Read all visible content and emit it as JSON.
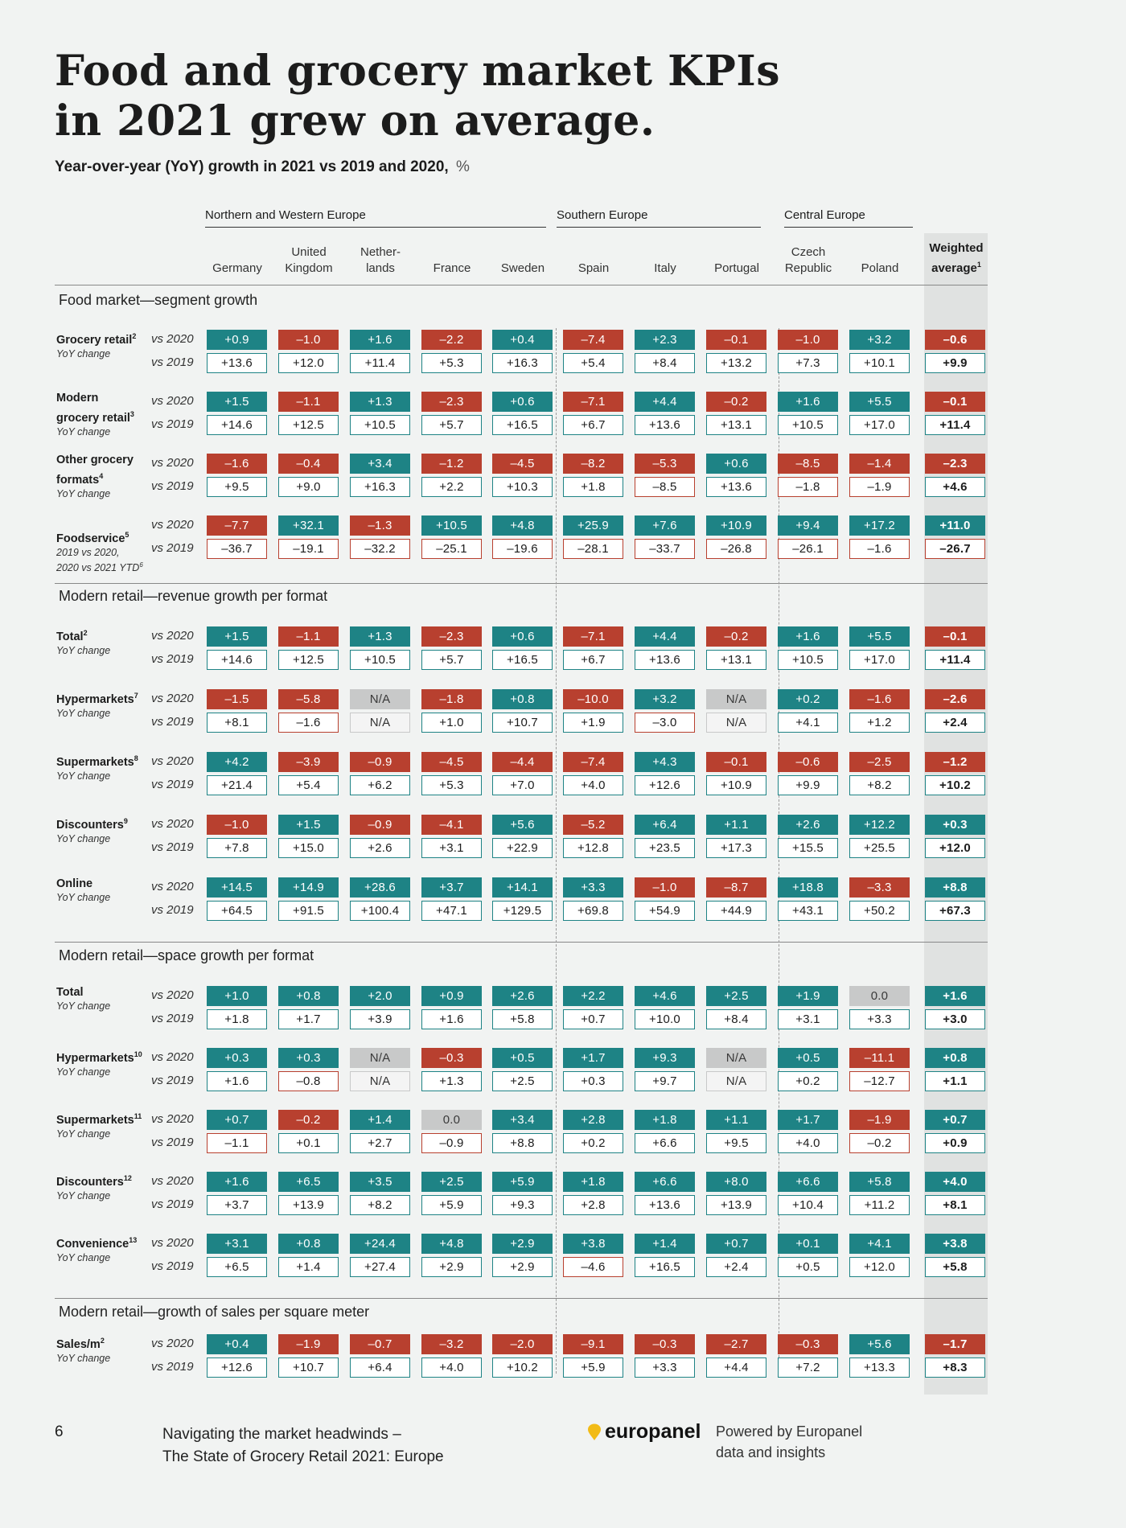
{
  "title_lines": [
    "Food and grocery market KPIs",
    "in 2021 grew on average."
  ],
  "subtitle": "Year-over-year (YoY) growth in 2021 vs 2019 and 2020,",
  "subtitle_unit": "%",
  "column_groups": [
    "Northern and Western Europe",
    "Southern Europe",
    "Central Europe"
  ],
  "columns": [
    [
      "Germany"
    ],
    [
      "United",
      "Kingdom"
    ],
    [
      "Nether-",
      "lands"
    ],
    [
      "France"
    ],
    [
      "Sweden"
    ],
    [
      "Spain"
    ],
    [
      "Italy"
    ],
    [
      "Portugal"
    ],
    [
      "Czech",
      "Republic"
    ],
    [
      "Poland"
    ]
  ],
  "weighted_header": [
    "Weighted",
    "average"
  ],
  "weighted_footnote": "1",
  "vs_labels": [
    "vs 2020",
    "vs 2019"
  ],
  "sections": [
    {
      "title": "Food market—segment growth",
      "rows": [
        {
          "label": [
            "Grocery retail"
          ],
          "fn": "2",
          "sub": [
            "YoY change"
          ],
          "v2020": [
            "+0.9",
            "–1.0",
            "+1.6",
            "–2.2",
            "+0.4",
            "–7.4",
            "+2.3",
            "–0.1",
            "–1.0",
            "+3.2",
            "–0.6"
          ],
          "v2019": [
            "+13.6",
            "+12.0",
            "+11.4",
            "+5.3",
            "+16.3",
            "+5.4",
            "+8.4",
            "+13.2",
            "+7.3",
            "+10.1",
            "+9.9"
          ]
        },
        {
          "label": [
            "Modern",
            "grocery retail"
          ],
          "fn": "3",
          "sub": [
            "YoY change"
          ],
          "v2020": [
            "+1.5",
            "–1.1",
            "+1.3",
            "–2.3",
            "+0.6",
            "–7.1",
            "+4.4",
            "–0.2",
            "+1.6",
            "+5.5",
            "–0.1"
          ],
          "v2019": [
            "+14.6",
            "+12.5",
            "+10.5",
            "+5.7",
            "+16.5",
            "+6.7",
            "+13.6",
            "+13.1",
            "+10.5",
            "+17.0",
            "+11.4"
          ]
        },
        {
          "label": [
            "Other grocery",
            "formats"
          ],
          "fn": "4",
          "sub": [
            "YoY change"
          ],
          "v2020": [
            "–1.6",
            "–0.4",
            "+3.4",
            "–1.2",
            "–4.5",
            "–8.2",
            "–5.3",
            "+0.6",
            "–8.5",
            "–1.4",
            "–2.3"
          ],
          "v2019": [
            "+9.5",
            "+9.0",
            "+16.3",
            "+2.2",
            "+10.3",
            "+1.8",
            "–8.5",
            "+13.6",
            "–1.8",
            "–1.9",
            "+4.6"
          ]
        },
        {
          "label": [
            "Foodservice"
          ],
          "fn": "5",
          "sub": [
            "2019 vs 2020,",
            "2020 vs 2021 YTD"
          ],
          "subfn": "6",
          "v2020": [
            "–7.7",
            "+32.1",
            "–1.3",
            "+10.5",
            "+4.8",
            "+25.9",
            "+7.6",
            "+10.9",
            "+9.4",
            "+17.2",
            "+11.0"
          ],
          "v2019": [
            "–36.7",
            "–19.1",
            "–32.2",
            "–25.1",
            "–19.6",
            "–28.1",
            "–33.7",
            "–26.8",
            "–26.1",
            "–1.6",
            "–26.7"
          ]
        }
      ]
    },
    {
      "title": "Modern retail—revenue growth per format",
      "rows": [
        {
          "label": [
            "Total"
          ],
          "fn": "2",
          "sub": [
            "YoY change"
          ],
          "v2020": [
            "+1.5",
            "–1.1",
            "+1.3",
            "–2.3",
            "+0.6",
            "–7.1",
            "+4.4",
            "–0.2",
            "+1.6",
            "+5.5",
            "–0.1"
          ],
          "v2019": [
            "+14.6",
            "+12.5",
            "+10.5",
            "+5.7",
            "+16.5",
            "+6.7",
            "+13.6",
            "+13.1",
            "+10.5",
            "+17.0",
            "+11.4"
          ]
        },
        {
          "label": [
            "Hypermarkets"
          ],
          "fn": "7",
          "sub": [
            "YoY change"
          ],
          "v2020": [
            "–1.5",
            "–5.8",
            "N/A",
            "–1.8",
            "+0.8",
            "–10.0",
            "+3.2",
            "N/A",
            "+0.2",
            "–1.6",
            "–2.6"
          ],
          "v2019": [
            "+8.1",
            "–1.6",
            "N/A",
            "+1.0",
            "+10.7",
            "+1.9",
            "–3.0",
            "N/A",
            "+4.1",
            "+1.2",
            "+2.4"
          ]
        },
        {
          "label": [
            "Supermarkets"
          ],
          "fn": "8",
          "sub": [
            "YoY change"
          ],
          "v2020": [
            "+4.2",
            "–3.9",
            "–0.9",
            "–4.5",
            "–4.4",
            "–7.4",
            "+4.3",
            "–0.1",
            "–0.6",
            "–2.5",
            "–1.2"
          ],
          "v2019": [
            "+21.4",
            "+5.4",
            "+6.2",
            "+5.3",
            "+7.0",
            "+4.0",
            "+12.6",
            "+10.9",
            "+9.9",
            "+8.2",
            "+10.2"
          ]
        },
        {
          "label": [
            "Discounters"
          ],
          "fn": "9",
          "sub": [
            "YoY change"
          ],
          "v2020": [
            "–1.0",
            "+1.5",
            "–0.9",
            "–4.1",
            "+5.6",
            "–5.2",
            "+6.4",
            "+1.1",
            "+2.6",
            "+12.2",
            "+0.3"
          ],
          "v2019": [
            "+7.8",
            "+15.0",
            "+2.6",
            "+3.1",
            "+22.9",
            "+12.8",
            "+23.5",
            "+17.3",
            "+15.5",
            "+25.5",
            "+12.0"
          ]
        },
        {
          "label": [
            "Online"
          ],
          "fn": "",
          "sub": [
            "YoY change"
          ],
          "v2020": [
            "+14.5",
            "+14.9",
            "+28.6",
            "+3.7",
            "+14.1",
            "+3.3",
            "–1.0",
            "–8.7",
            "+18.8",
            "–3.3",
            "+8.8"
          ],
          "v2019": [
            "+64.5",
            "+91.5",
            "+100.4",
            "+47.1",
            "+129.5",
            "+69.8",
            "+54.9",
            "+44.9",
            "+43.1",
            "+50.2",
            "+67.3"
          ]
        }
      ]
    },
    {
      "title": "Modern retail—space growth per format",
      "rows": [
        {
          "label": [
            "Total"
          ],
          "fn": "",
          "sub": [
            "YoY change"
          ],
          "v2020": [
            "+1.0",
            "+0.8",
            "+2.0",
            "+0.9",
            "+2.6",
            "+2.2",
            "+4.6",
            "+2.5",
            "+1.9",
            "0.0",
            "+1.6"
          ],
          "v2019": [
            "+1.8",
            "+1.7",
            "+3.9",
            "+1.6",
            "+5.8",
            "+0.7",
            "+10.0",
            "+8.4",
            "+3.1",
            "+3.3",
            "+3.0"
          ]
        },
        {
          "label": [
            "Hypermarkets"
          ],
          "fn": "10",
          "sub": [
            "YoY change"
          ],
          "v2020": [
            "+0.3",
            "+0.3",
            "N/A",
            "–0.3",
            "+0.5",
            "+1.7",
            "+9.3",
            "N/A",
            "+0.5",
            "–11.1",
            "+0.8"
          ],
          "v2019": [
            "+1.6",
            "–0.8",
            "N/A",
            "+1.3",
            "+2.5",
            "+0.3",
            "+9.7",
            "N/A",
            "+0.2",
            "–12.7",
            "+1.1"
          ]
        },
        {
          "label": [
            "Supermarkets"
          ],
          "fn": "11",
          "sub": [
            "YoY change"
          ],
          "v2020": [
            "+0.7",
            "–0.2",
            "+1.4",
            "0.0",
            "+3.4",
            "+2.8",
            "+1.8",
            "+1.1",
            "+1.7",
            "–1.9",
            "+0.7"
          ],
          "v2019": [
            "–1.1",
            "+0.1",
            "+2.7",
            "–0.9",
            "+8.8",
            "+0.2",
            "+6.6",
            "+9.5",
            "+4.0",
            "–0.2",
            "+0.9"
          ]
        },
        {
          "label": [
            "Discounters"
          ],
          "fn": "12",
          "sub": [
            "YoY change"
          ],
          "v2020": [
            "+1.6",
            "+6.5",
            "+3.5",
            "+2.5",
            "+5.9",
            "+1.8",
            "+6.6",
            "+8.0",
            "+6.6",
            "+5.8",
            "+4.0"
          ],
          "v2019": [
            "+3.7",
            "+13.9",
            "+8.2",
            "+5.9",
            "+9.3",
            "+2.8",
            "+13.6",
            "+13.9",
            "+10.4",
            "+11.2",
            "+8.1"
          ]
        },
        {
          "label": [
            "Convenience"
          ],
          "fn": "13",
          "sub": [
            "YoY change"
          ],
          "v2020": [
            "+3.1",
            "+0.8",
            "+24.4",
            "+4.8",
            "+2.9",
            "+3.8",
            "+1.4",
            "+0.7",
            "+0.1",
            "+4.1",
            "+3.8"
          ],
          "v2019": [
            "+6.5",
            "+1.4",
            "+27.4",
            "+2.9",
            "+2.9",
            "–4.6",
            "+16.5",
            "+2.4",
            "+0.5",
            "+12.0",
            "+5.8"
          ]
        }
      ]
    },
    {
      "title": "Modern retail—growth of sales per square meter",
      "rows": [
        {
          "label": [
            "Sales/m"
          ],
          "fn": "2",
          "sub": [
            "YoY change"
          ],
          "v2020": [
            "+0.4",
            "–1.9",
            "–0.7",
            "–3.2",
            "–2.0",
            "–9.1",
            "–0.3",
            "–2.7",
            "–0.3",
            "+5.6",
            "–1.7"
          ],
          "v2019": [
            "+12.6",
            "+10.7",
            "+6.4",
            "+4.0",
            "+10.2",
            "+5.9",
            "+3.3",
            "+4.4",
            "+7.2",
            "+13.3",
            "+8.3"
          ]
        }
      ]
    }
  ],
  "footer": {
    "page": "6",
    "publication": [
      "Navigating the market headwinds –",
      "The State of Grocery Retail 2021: Europe"
    ],
    "logo": "europanel",
    "powered": [
      "Powered by Europanel",
      "data and insights"
    ]
  },
  "colors": {
    "positive": "#1e8385",
    "negative": "#b8402f",
    "na": "#c8c9c9",
    "background": "#f1f3f2"
  }
}
